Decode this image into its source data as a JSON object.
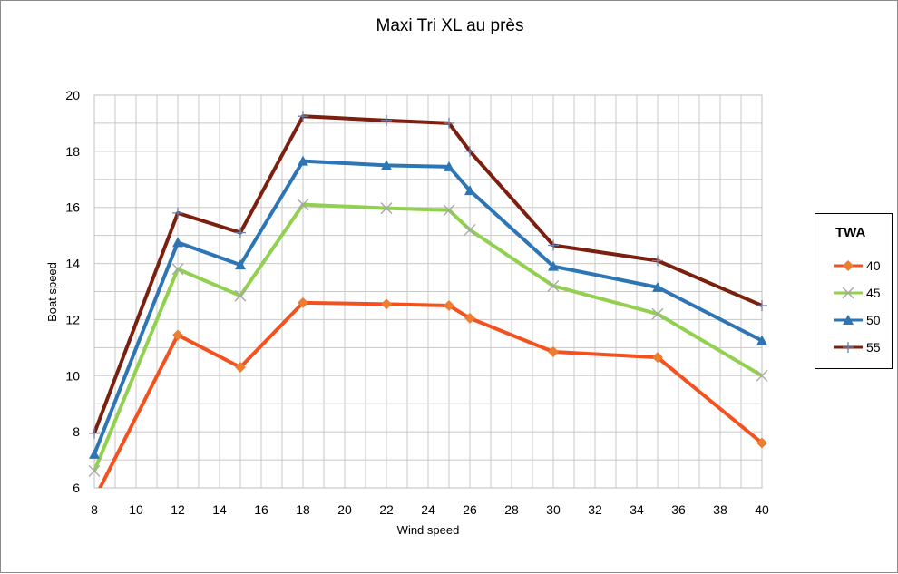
{
  "chart_data": {
    "type": "line",
    "title": "Maxi Tri XL au près",
    "xlabel": "Wind speed",
    "ylabel": "Boat speed",
    "x": [
      8,
      12,
      15,
      18,
      22,
      25,
      26,
      30,
      35,
      40
    ],
    "x_ticks": [
      8,
      10,
      12,
      14,
      16,
      18,
      20,
      22,
      24,
      26,
      28,
      30,
      32,
      34,
      36,
      38,
      40
    ],
    "x_categories": [
      8,
      10,
      12,
      14,
      15,
      16,
      18,
      20,
      22,
      24,
      25,
      26,
      28,
      30,
      32,
      34,
      35,
      36,
      38,
      40
    ],
    "xlim": [
      8,
      40
    ],
    "ylim": [
      6,
      20
    ],
    "y_ticks": [
      6,
      8,
      10,
      12,
      14,
      16,
      18,
      20
    ],
    "grid": true,
    "legend_title": "TWA",
    "legend_position": "right",
    "series": [
      {
        "name": "40",
        "color": "#F4511E",
        "marker": "diamond",
        "values": [
          5.6,
          11.45,
          10.3,
          12.6,
          12.55,
          12.5,
          12.05,
          10.85,
          10.65,
          7.6
        ]
      },
      {
        "name": "45",
        "color": "#92D050",
        "marker": "x",
        "values": [
          6.6,
          13.8,
          12.85,
          16.1,
          15.97,
          15.9,
          15.2,
          13.2,
          12.2,
          10.0
        ]
      },
      {
        "name": "50",
        "color": "#2E75B6",
        "marker": "triangle",
        "values": [
          7.2,
          14.75,
          13.95,
          17.65,
          17.5,
          17.45,
          16.6,
          13.9,
          13.15,
          11.25
        ]
      },
      {
        "name": "55",
        "color": "#7B1F0E",
        "marker": "plus",
        "values": [
          7.95,
          15.8,
          15.1,
          19.25,
          19.1,
          19.0,
          18.0,
          14.65,
          14.1,
          12.5
        ]
      }
    ]
  }
}
